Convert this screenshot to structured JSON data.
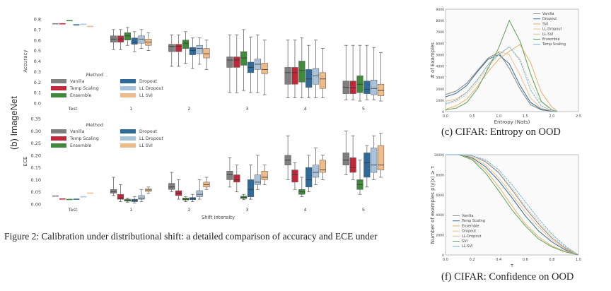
{
  "figure_label": "(b) ImageNet",
  "caption": "Figure 2: Calibration under distributional shift: a detailed comparison of accuracy and ECE under",
  "colors": {
    "Vanilla": "#7f7f7f",
    "Temp Scaling": "#c0283a",
    "Ensemble": "#3f8a3b",
    "Dropout": "#2f6b9a",
    "LL Dropout": "#a9c3dc",
    "LL SVI": "#efbb88"
  },
  "chart_data": [
    {
      "type": "box",
      "panel": "accuracy",
      "ylabel": "Accuracy",
      "ylim": [
        0,
        0.8
      ],
      "yticks": [
        "0.0",
        "0.1",
        "0.2",
        "0.3",
        "0.4",
        "0.5",
        "0.6",
        "0.7",
        "0.8"
      ],
      "xticks": [
        "Test",
        "1",
        "2",
        "3",
        "4",
        "5"
      ],
      "legend_title": "Method",
      "legend": [
        "Vanilla",
        "Temp Scaling",
        "Ensemble",
        "Dropout",
        "LL Dropout",
        "LL SVI"
      ],
      "series": [
        {
          "name": "Vanilla",
          "boxes": [
            [
              0.755,
              0.755,
              0.755,
              0.755,
              0.755
            ],
            [
              0.51,
              0.58,
              0.61,
              0.64,
              0.7
            ],
            [
              0.35,
              0.49,
              0.54,
              0.56,
              0.65
            ],
            [
              0.1,
              0.34,
              0.41,
              0.44,
              0.65
            ],
            [
              0.05,
              0.18,
              0.29,
              0.34,
              0.6
            ],
            [
              0.03,
              0.09,
              0.15,
              0.21,
              0.55
            ]
          ]
        },
        {
          "name": "Temp Scaling",
          "boxes": [
            [
              0.755,
              0.755,
              0.755,
              0.755,
              0.755
            ],
            [
              0.51,
              0.58,
              0.61,
              0.64,
              0.7
            ],
            [
              0.35,
              0.49,
              0.54,
              0.56,
              0.65
            ],
            [
              0.1,
              0.34,
              0.41,
              0.44,
              0.65
            ],
            [
              0.05,
              0.18,
              0.29,
              0.34,
              0.6
            ],
            [
              0.03,
              0.09,
              0.15,
              0.21,
              0.55
            ]
          ]
        },
        {
          "name": "Ensemble",
          "boxes": [
            [
              0.785,
              0.785,
              0.785,
              0.785,
              0.785
            ],
            [
              0.55,
              0.6,
              0.64,
              0.67,
              0.72
            ],
            [
              0.38,
              0.52,
              0.57,
              0.6,
              0.68
            ],
            [
              0.12,
              0.36,
              0.43,
              0.49,
              0.7
            ],
            [
              0.05,
              0.2,
              0.31,
              0.4,
              0.62
            ],
            [
              0.02,
              0.1,
              0.18,
              0.26,
              0.55
            ]
          ]
        },
        {
          "name": "Dropout",
          "boxes": [
            [
              0.745,
              0.745,
              0.745,
              0.745,
              0.745
            ],
            [
              0.49,
              0.56,
              0.58,
              0.62,
              0.68
            ],
            [
              0.33,
              0.46,
              0.5,
              0.53,
              0.62
            ],
            [
              0.1,
              0.29,
              0.34,
              0.39,
              0.63
            ],
            [
              0.05,
              0.15,
              0.23,
              0.32,
              0.55
            ],
            [
              0.03,
              0.09,
              0.13,
              0.21,
              0.55
            ]
          ]
        },
        {
          "name": "LL Dropout",
          "boxes": [
            [
              0.75,
              0.75,
              0.75,
              0.75,
              0.75
            ],
            [
              0.52,
              0.57,
              0.61,
              0.64,
              0.7
            ],
            [
              0.37,
              0.47,
              0.52,
              0.55,
              0.62
            ],
            [
              0.1,
              0.32,
              0.37,
              0.42,
              0.65
            ],
            [
              0.05,
              0.18,
              0.26,
              0.33,
              0.6
            ],
            [
              0.03,
              0.08,
              0.14,
              0.22,
              0.53
            ]
          ]
        },
        {
          "name": "LL SVI",
          "boxes": [
            [
              0.73,
              0.73,
              0.73,
              0.73,
              0.73
            ],
            [
              0.5,
              0.55,
              0.58,
              0.61,
              0.67
            ],
            [
              0.32,
              0.43,
              0.47,
              0.52,
              0.6
            ],
            [
              0.08,
              0.28,
              0.32,
              0.38,
              0.6
            ],
            [
              0.05,
              0.14,
              0.23,
              0.29,
              0.52
            ],
            [
              0.02,
              0.07,
              0.12,
              0.18,
              0.48
            ]
          ]
        }
      ]
    },
    {
      "type": "box",
      "panel": "ece",
      "ylabel": "ECE",
      "xlabel": "Shift intensity",
      "ylim": [
        0,
        0.35
      ],
      "yticks": [
        "0.00",
        "0.05",
        "0.10",
        "0.15",
        "0.20",
        "0.25",
        "0.30",
        "0.35"
      ],
      "xticks": [
        "Test",
        "1",
        "2",
        "3",
        "4",
        "5"
      ],
      "legend_title": "Method",
      "legend": [
        "Vanilla",
        "Temp Scaling",
        "Ensemble",
        "Dropout",
        "LL Dropout",
        "LL SVI"
      ],
      "series": [
        {
          "name": "Vanilla",
          "boxes": [
            [
              0.033,
              0.033,
              0.033,
              0.033,
              0.033
            ],
            [
              0.035,
              0.045,
              0.05,
              0.06,
              0.11
            ],
            [
              0.05,
              0.06,
              0.07,
              0.085,
              0.13
            ],
            [
              0.07,
              0.1,
              0.12,
              0.135,
              0.19
            ],
            [
              0.1,
              0.16,
              0.18,
              0.2,
              0.28
            ],
            [
              0.12,
              0.16,
              0.18,
              0.21,
              0.3
            ]
          ]
        },
        {
          "name": "Temp Scaling",
          "boxes": [
            [
              0.021,
              0.021,
              0.021,
              0.021,
              0.021
            ],
            [
              0.01,
              0.02,
              0.025,
              0.04,
              0.08
            ],
            [
              0.02,
              0.035,
              0.045,
              0.055,
              0.1
            ],
            [
              0.05,
              0.09,
              0.1,
              0.12,
              0.16
            ],
            [
              0.06,
              0.09,
              0.12,
              0.14,
              0.17
            ],
            [
              0.1,
              0.13,
              0.15,
              0.19,
              0.28
            ]
          ]
        },
        {
          "name": "Ensemble",
          "boxes": [
            [
              0.019,
              0.019,
              0.019,
              0.019,
              0.019
            ],
            [
              0.008,
              0.012,
              0.015,
              0.02,
              0.025
            ],
            [
              0.01,
              0.017,
              0.02,
              0.025,
              0.03
            ],
            [
              0.018,
              0.023,
              0.027,
              0.033,
              0.04
            ],
            [
              0.03,
              0.04,
              0.05,
              0.06,
              0.11
            ],
            [
              0.04,
              0.06,
              0.08,
              0.1,
              0.18
            ]
          ]
        },
        {
          "name": "Dropout",
          "boxes": [
            [
              0.02,
              0.02,
              0.02,
              0.02,
              0.02
            ],
            [
              0.005,
              0.01,
              0.015,
              0.02,
              0.03
            ],
            [
              0.01,
              0.018,
              0.022,
              0.027,
              0.04
            ],
            [
              0.02,
              0.03,
              0.06,
              0.1,
              0.16
            ],
            [
              0.05,
              0.07,
              0.1,
              0.15,
              0.2
            ],
            [
              0.07,
              0.11,
              0.17,
              0.21,
              0.24
            ]
          ]
        },
        {
          "name": "LL Dropout",
          "boxes": [
            [
              0.03,
              0.03,
              0.03,
              0.03,
              0.03
            ],
            [
              0.01,
              0.02,
              0.025,
              0.035,
              0.06
            ],
            [
              0.02,
              0.03,
              0.04,
              0.055,
              0.1
            ],
            [
              0.06,
              0.08,
              0.09,
              0.12,
              0.2
            ],
            [
              0.08,
              0.11,
              0.13,
              0.16,
              0.23
            ],
            [
              0.1,
              0.13,
              0.16,
              0.23,
              0.28
            ]
          ]
        },
        {
          "name": "LL SVI",
          "boxes": [
            [
              0.045,
              0.045,
              0.045,
              0.045,
              0.045
            ],
            [
              0.045,
              0.052,
              0.058,
              0.063,
              0.07
            ],
            [
              0.06,
              0.07,
              0.08,
              0.09,
              0.11
            ],
            [
              0.08,
              0.1,
              0.11,
              0.135,
              0.16
            ],
            [
              0.1,
              0.13,
              0.14,
              0.18,
              0.2
            ],
            [
              0.11,
              0.14,
              0.16,
              0.24,
              0.29
            ]
          ]
        }
      ]
    },
    {
      "type": "line",
      "panel": "cifar-entropy",
      "title": "(c) CIFAR: Entropy on OOD",
      "xlabel": "Entropy (Nats)",
      "ylabel": "# of Examples",
      "xlim": [
        0,
        2.5
      ],
      "ylim": [
        0,
        9000
      ],
      "xticks": [
        "0.0",
        "0.5",
        "1.0",
        "1.5",
        "2.0",
        "2.5"
      ],
      "yticks": [
        "0",
        "1000",
        "2000",
        "3000",
        "4000",
        "5000",
        "6000",
        "7000",
        "8000",
        "9000"
      ],
      "x": [
        0.0,
        0.2,
        0.4,
        0.6,
        0.8,
        1.0,
        1.2,
        1.4,
        1.6,
        1.8,
        2.0,
        2.1
      ],
      "series": [
        {
          "name": "Vanilla",
          "values": [
            1500,
            1800,
            2500,
            3600,
            4700,
            5200,
            3800,
            2000,
            600,
            150,
            30,
            0
          ]
        },
        {
          "name": "Dropout",
          "values": [
            1300,
            1600,
            2300,
            3500,
            4600,
            5000,
            4200,
            2300,
            800,
            200,
            40,
            0
          ]
        },
        {
          "name": "SVI",
          "values": [
            200,
            500,
            1100,
            2200,
            3500,
            4600,
            5300,
            5900,
            4300,
            1700,
            400,
            50
          ]
        },
        {
          "name": "LL-Dropout",
          "values": [
            900,
            1100,
            1700,
            2800,
            4100,
            5300,
            5000,
            3200,
            1200,
            300,
            60,
            0
          ]
        },
        {
          "name": "LL-SVI",
          "values": [
            600,
            900,
            1500,
            2600,
            3900,
            5000,
            5700,
            4600,
            2400,
            800,
            150,
            0
          ]
        },
        {
          "name": "Ensemble",
          "values": [
            150,
            300,
            800,
            2000,
            3800,
            5600,
            8000,
            6200,
            3300,
            900,
            150,
            0
          ]
        },
        {
          "name": "Temp Scaling",
          "values": [
            700,
            1000,
            1700,
            2800,
            4100,
            5000,
            5700,
            4500,
            1900,
            500,
            80,
            0
          ]
        }
      ],
      "legend": [
        "Vanilla",
        "Dropout",
        "SVI",
        "LL-Dropout",
        "LL-SVI",
        "Ensemble",
        "Temp Scaling"
      ]
    },
    {
      "type": "line",
      "panel": "cifar-confidence",
      "title": "(f) CIFAR: Confidence on OOD",
      "xlabel": "τ",
      "ylabel": "Number of examples p(y|x) ≥ τ",
      "xlim": [
        0,
        1
      ],
      "ylim": [
        0,
        10000
      ],
      "xticks": [
        "0.0",
        "0.2",
        "0.4",
        "0.6",
        "0.8",
        "1.0"
      ],
      "yticks": [
        "0",
        "2000",
        "4000",
        "6000",
        "8000",
        "10000"
      ],
      "x": [
        0.0,
        0.1,
        0.2,
        0.3,
        0.4,
        0.5,
        0.6,
        0.7,
        0.8,
        0.9,
        1.0
      ],
      "series": [
        {
          "name": "Vanilla",
          "values": [
            10000,
            10000,
            9900,
            9300,
            8200,
            6500,
            4700,
            3100,
            1700,
            700,
            0
          ]
        },
        {
          "name": "Temp Scaling",
          "values": [
            10000,
            10000,
            9700,
            8800,
            7400,
            5700,
            3900,
            2400,
            1300,
            500,
            0
          ]
        },
        {
          "name": "Ensemble",
          "values": [
            10000,
            10000,
            9600,
            8500,
            6800,
            4900,
            3100,
            1800,
            900,
            350,
            0
          ]
        },
        {
          "name": "Dropout",
          "values": [
            10000,
            10000,
            9800,
            9000,
            7700,
            6000,
            4300,
            2800,
            1500,
            600,
            0
          ]
        },
        {
          "name": "LL-Dropout",
          "values": [
            10000,
            10000,
            9900,
            9400,
            8300,
            6700,
            4900,
            3300,
            1900,
            800,
            0
          ]
        },
        {
          "name": "SVI",
          "values": [
            10000,
            10000,
            9500,
            8200,
            6400,
            4500,
            2900,
            1600,
            800,
            300,
            0
          ]
        },
        {
          "name": "LL-SVI",
          "values": [
            10000,
            10000,
            9900,
            9500,
            8500,
            7000,
            5300,
            3600,
            2100,
            900,
            0
          ]
        }
      ],
      "legend": [
        "Vanilla",
        "Temp Scaling",
        "Ensemble",
        "Dropout",
        "LL-Dropout",
        "SVI",
        "LL-SVI"
      ]
    }
  ]
}
